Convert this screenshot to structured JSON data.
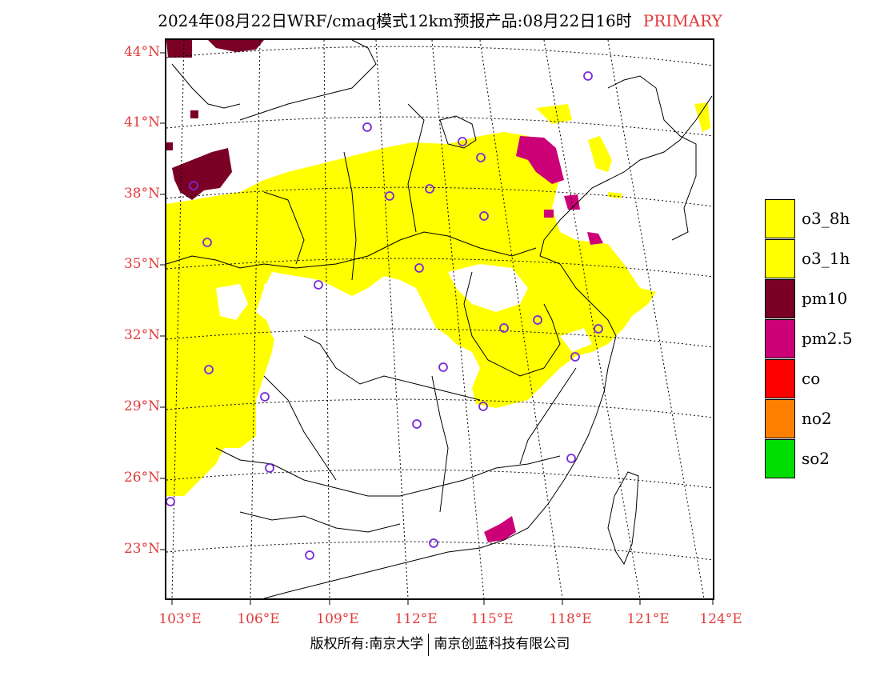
{
  "title": {
    "main": "2024年08月22日WRF/cmaq模式12km预报产品:08月22日16时",
    "tag": "PRIMARY",
    "tag_color": "#e23a3a"
  },
  "axes": {
    "lat_labels": [
      "44°N",
      "41°N",
      "38°N",
      "35°N",
      "32°N",
      "29°N",
      "26°N",
      "23°N"
    ],
    "lon_labels": [
      "103°E",
      "106°E",
      "109°E",
      "112°E",
      "115°E",
      "118°E",
      "121°E",
      "124°E"
    ],
    "label_color": "#e23a3a"
  },
  "legend": {
    "items": [
      {
        "label": "o3_8h",
        "color": "#ffff00"
      },
      {
        "label": "o3_1h",
        "color": "#ffff00"
      },
      {
        "label": "pm10",
        "color": "#7a0026"
      },
      {
        "label": "pm2.5",
        "color": "#cc0077"
      },
      {
        "label": "co",
        "color": "#ff0000"
      },
      {
        "label": "no2",
        "color": "#ff8000"
      },
      {
        "label": "so2",
        "color": "#00dd00"
      }
    ]
  },
  "footer": {
    "left": "版权所有:南京大学",
    "right": "南京创蓝科技有限公司"
  },
  "station_marker_color": "#7a2bd6"
}
